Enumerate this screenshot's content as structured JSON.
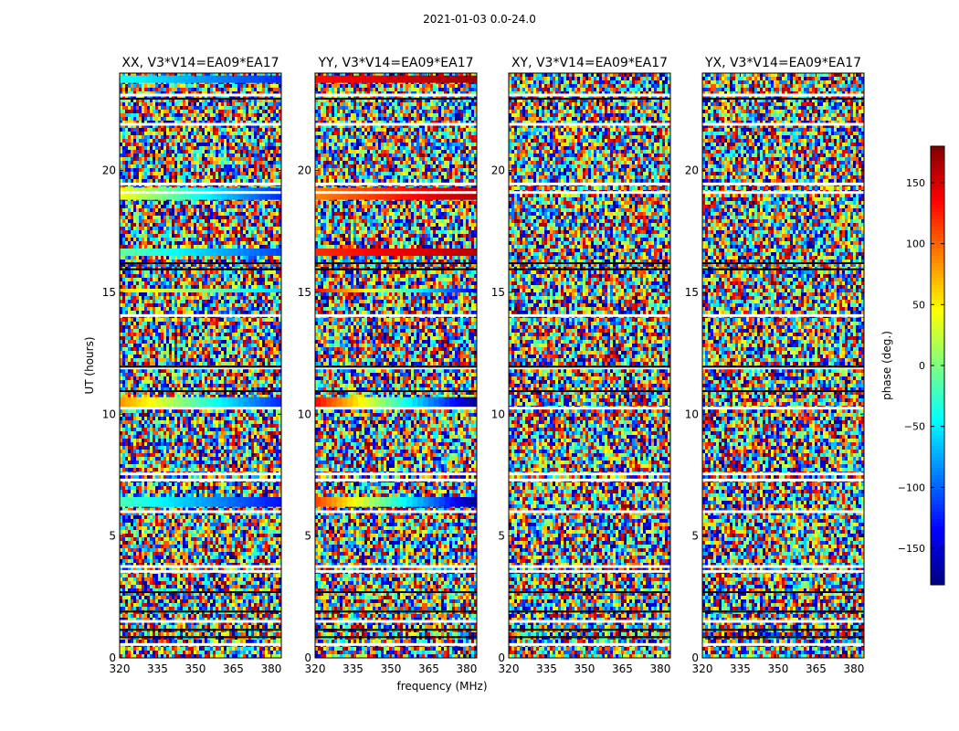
{
  "figure": {
    "suptitle": "2021-01-03 0.0-24.0"
  },
  "chart_data": {
    "type": "heatmap",
    "xlabel": "frequency (MHz)",
    "ylabel": "UT (hours)",
    "xlim": [
      320,
      384
    ],
    "ylim": [
      0,
      24
    ],
    "x_ticks": [
      "320",
      "335",
      "350",
      "365",
      "380"
    ],
    "x_tick_values": [
      320,
      335,
      350,
      365,
      380
    ],
    "y_ticks": [
      "0",
      "5",
      "10",
      "15",
      "20"
    ],
    "y_tick_values": [
      0,
      5,
      10,
      15,
      20
    ],
    "colorbar": {
      "label": "phase (deg.)",
      "range": [
        -180,
        180
      ],
      "ticks": [
        "150",
        "100",
        "50",
        "0",
        "−50",
        "−100",
        "−150"
      ],
      "tick_values": [
        150,
        100,
        50,
        0,
        -50,
        -100,
        -150
      ],
      "colormap": "jet"
    },
    "panels": [
      {
        "id": "xx",
        "title": "XX, V3*V14=EA09*EA17",
        "correlation": "XX",
        "coherent_bands": [
          {
            "t0": 6.2,
            "t1": 6.6,
            "phase_start": -20,
            "phase_end": -130
          },
          {
            "t0": 10.3,
            "t1": 10.7,
            "phase_start": 80,
            "phase_end": -120
          },
          {
            "t0": 15.0,
            "t1": 15.15,
            "phase_start": 60,
            "phase_end": -60
          },
          {
            "t0": 16.5,
            "t1": 16.8,
            "phase_start": -10,
            "phase_end": -110
          },
          {
            "t0": 18.8,
            "t1": 19.3,
            "phase_start": 40,
            "phase_end": -120
          },
          {
            "t0": 23.6,
            "t1": 23.9,
            "phase_start": -40,
            "phase_end": -120
          }
        ]
      },
      {
        "id": "yy",
        "title": "YY, V3*V14=EA09*EA17",
        "correlation": "YY",
        "coherent_bands": [
          {
            "t0": 6.2,
            "t1": 6.6,
            "phase_start": 110,
            "phase_end": -170
          },
          {
            "t0": 10.3,
            "t1": 10.7,
            "phase_start": 130,
            "phase_end": -170
          },
          {
            "t0": 15.0,
            "t1": 15.15,
            "phase_start": 130,
            "phase_end": -140
          },
          {
            "t0": 16.5,
            "t1": 16.8,
            "phase_start": 120,
            "phase_end": 160
          },
          {
            "t0": 18.8,
            "t1": 19.3,
            "phase_start": 90,
            "phase_end": 160
          },
          {
            "t0": 23.6,
            "t1": 23.9,
            "phase_start": 130,
            "phase_end": 170
          }
        ]
      },
      {
        "id": "xy",
        "title": "XY, V3*V14=EA09*EA17",
        "correlation": "XY",
        "coherent_bands": []
      },
      {
        "id": "yx",
        "title": "YX, V3*V14=EA09*EA17",
        "correlation": "YX",
        "coherent_bands": []
      }
    ],
    "flagged_hours": [
      0.55,
      1.5,
      3.55,
      3.75,
      6.0,
      7.3,
      7.55,
      10.25,
      11.9,
      14.05,
      19.1,
      19.45,
      21.9,
      23.1
    ],
    "missing_hours": [
      0.85,
      1.15,
      1.9,
      2.7,
      10.95,
      11.95,
      15.95,
      16.2,
      22.95
    ]
  }
}
